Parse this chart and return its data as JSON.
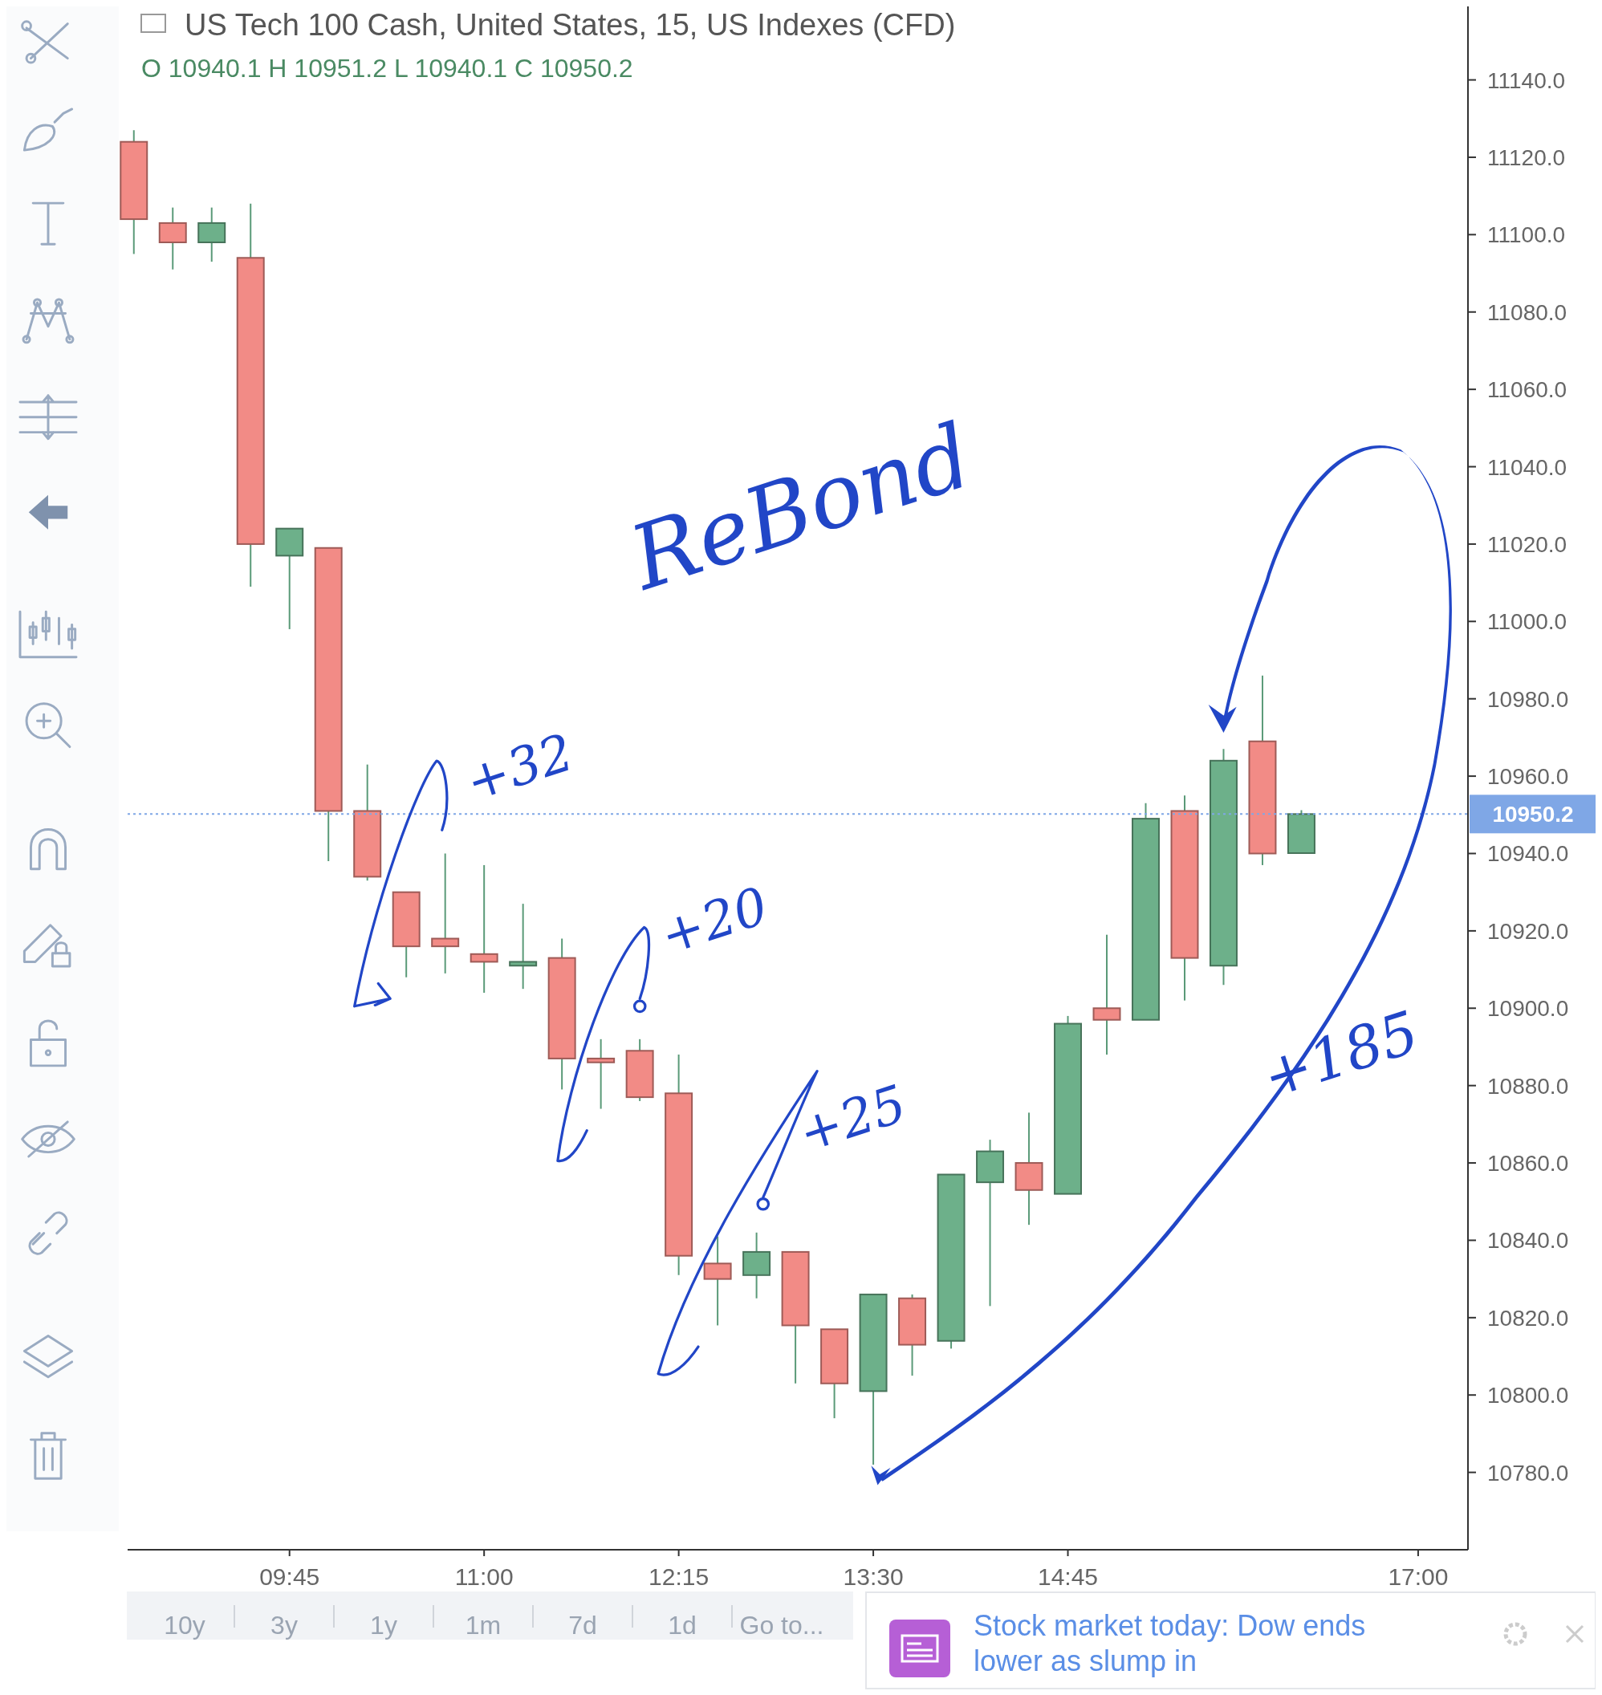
{
  "chart_data": {
    "type": "candlestick",
    "title": "US Tech 100 Cash, United States, 15, US Indexes (CFD)",
    "subtitle": "O 10940.1 H 10951.2 L 10940.1 C 10950.2",
    "x": [
      8.75,
      9,
      9.25,
      9.5,
      9.75,
      10,
      10.25,
      10.5,
      10.75,
      11,
      11.25,
      11.5,
      11.75,
      12,
      12.25,
      12.5,
      12.75,
      13,
      13.25,
      13.5,
      13.75,
      14,
      14.25,
      14.5,
      14.75,
      15,
      15.25,
      15.5,
      15.75,
      16,
      16.25
    ],
    "ohlc": [
      [
        11124,
        11127,
        11095,
        11104
      ],
      [
        11103,
        11107,
        11091,
        11098
      ],
      [
        11098,
        11107,
        11093,
        11103
      ],
      [
        11094,
        11108,
        11009,
        11020
      ],
      [
        11017,
        11024,
        10998,
        11024
      ],
      [
        11019,
        11019,
        10938,
        10951
      ],
      [
        10951,
        10963,
        10933,
        10934
      ],
      [
        10930,
        10930,
        10908,
        10916
      ],
      [
        10918,
        10940,
        10909,
        10916
      ],
      [
        10914,
        10937,
        10904,
        10912
      ],
      [
        10911,
        10927,
        10905,
        10912
      ],
      [
        10913,
        10918,
        10879,
        10887
      ],
      [
        10887,
        10892,
        10874,
        10886
      ],
      [
        10889,
        10892,
        10876,
        10877
      ],
      [
        10878,
        10888,
        10831,
        10836
      ],
      [
        10834,
        10841,
        10818,
        10830
      ],
      [
        10831,
        10842,
        10825,
        10837
      ],
      [
        10837,
        10837,
        10803,
        10818
      ],
      [
        10817,
        10817,
        10794,
        10803
      ],
      [
        10801,
        10826,
        10782,
        10826
      ],
      [
        10825,
        10826,
        10805,
        10813
      ],
      [
        10814,
        10857,
        10812,
        10857
      ],
      [
        10855,
        10866,
        10823,
        10863
      ],
      [
        10860,
        10873,
        10844,
        10853
      ],
      [
        10852,
        10898,
        10852,
        10896
      ],
      [
        10900,
        10919,
        10888,
        10897
      ],
      [
        10897,
        10953,
        10897,
        10949
      ],
      [
        10951,
        10955,
        10902,
        10913
      ],
      [
        10911,
        10967,
        10906,
        10964
      ],
      [
        10969,
        10986,
        10937,
        10940
      ],
      [
        10940.1,
        10951.2,
        10940.1,
        10950.2
      ]
    ],
    "colors": [
      "#f28b86",
      "#f28b86",
      "#6db08a",
      "#f28b86",
      "#6db08a",
      "#f28b86",
      "#f28b86",
      "#f28b86",
      "#f28b86",
      "#f28b86",
      "#6db08a",
      "#f28b86",
      "#f28b86",
      "#f28b86",
      "#f28b86",
      "#f28b86",
      "#6db08a",
      "#f28b86",
      "#f28b86",
      "#6db08a",
      "#f28b86",
      "#6db08a",
      "#6db08a",
      "#f28b86",
      "#6db08a",
      "#f28b86",
      "#6db08a",
      "#f28b86",
      "#6db08a",
      "#f28b86",
      "#6db08a"
    ],
    "xlim": [
      8.71,
      17.32
    ],
    "xticks": [
      {
        "value": 9.75,
        "label": "09:45"
      },
      {
        "value": 11,
        "label": "11:00"
      },
      {
        "value": 12.25,
        "label": "12:15"
      },
      {
        "value": 13.5,
        "label": "13:30"
      },
      {
        "value": 14.75,
        "label": "14:45"
      },
      {
        "value": 17,
        "label": "17:00"
      }
    ],
    "ylim": [
      10760,
      11159
    ],
    "yticks": [
      {
        "value": 10780,
        "label": "10780.0"
      },
      {
        "value": 10800,
        "label": "10800.0"
      },
      {
        "value": 10820,
        "label": "10820.0"
      },
      {
        "value": 10840,
        "label": "10840.0"
      },
      {
        "value": 10860,
        "label": "10860.0"
      },
      {
        "value": 10880,
        "label": "10880.0"
      },
      {
        "value": 10900,
        "label": "10900.0"
      },
      {
        "value": 10920,
        "label": "10920.0"
      },
      {
        "value": 10940,
        "label": "10940.0"
      },
      {
        "value": 10960,
        "label": "10960.0"
      },
      {
        "value": 10980,
        "label": "10980.0"
      },
      {
        "value": 11000,
        "label": "11000.0"
      },
      {
        "value": 11020,
        "label": "11020.0"
      },
      {
        "value": 11040,
        "label": "11040.0"
      },
      {
        "value": 11060,
        "label": "11060.0"
      },
      {
        "value": 11080,
        "label": "11080.0"
      },
      {
        "value": 11100,
        "label": "11100.0"
      },
      {
        "value": 11120,
        "label": "11120.0"
      },
      {
        "value": 11140,
        "label": "11140.0"
      }
    ],
    "grid": false,
    "ref_lines": [
      {
        "axis": "y",
        "value": 10950.2,
        "label": "10950.2",
        "color": "#7fa7e6",
        "line_style": "dotted"
      }
    ],
    "annotations": [
      "ReBond",
      "+32",
      "+20",
      "+25",
      "+185",
      "10y",
      "3y",
      "1y",
      "1m",
      "7d",
      "1d",
      "Go to...",
      "Stock market today: Dow ends lower as slump in"
    ]
  }
}
